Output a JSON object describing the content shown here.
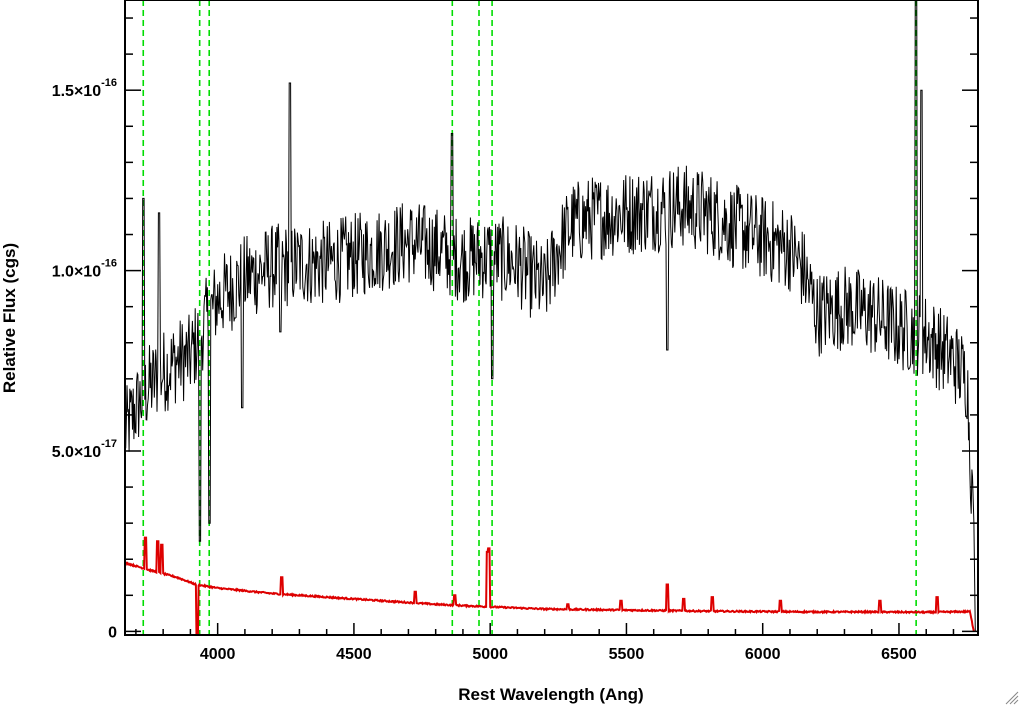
{
  "chart_data": {
    "type": "line",
    "xlabel": "Rest Wavelength (Ang)",
    "ylabel": "Relative Flux (cgs)",
    "xlim": [
      3660,
      6790
    ],
    "ylim": [
      -1e-18,
      1.75e-16
    ],
    "x_ticks": [
      4000,
      4500,
      5000,
      5500,
      6000,
      6500
    ],
    "x_tick_labels": [
      "4000",
      "4500",
      "5000",
      "5500",
      "6000",
      "6500"
    ],
    "y_ticks": [
      {
        "value": 0,
        "mantissa": "0",
        "exponent": ""
      },
      {
        "value": 5e-17,
        "mantissa": "5.0×10",
        "exponent": "-17"
      },
      {
        "value": 1e-16,
        "mantissa": "1.0×10",
        "exponent": "-16"
      },
      {
        "value": 1.5e-16,
        "mantissa": "1.5×10",
        "exponent": "-16"
      }
    ],
    "grid": false,
    "reference_lines": {
      "color": "#00dd00",
      "style": "dashed",
      "x": [
        3727,
        3934,
        3969,
        4861,
        4959,
        5007,
        6563
      ]
    },
    "series": [
      {
        "color": "#000000",
        "continuum": [
          [
            3660,
            5.5e-17
          ],
          [
            3700,
            6.2e-17
          ],
          [
            3750,
            6.8e-17
          ],
          [
            3800,
            7.2e-17
          ],
          [
            3850,
            7.5e-17
          ],
          [
            3900,
            7.6e-17
          ],
          [
            3950,
            8.5e-17
          ],
          [
            4000,
            9.2e-17
          ],
          [
            4100,
            9.8e-17
          ],
          [
            4200,
            1.01e-16
          ],
          [
            4300,
            1.02e-16
          ],
          [
            4400,
            1.02e-16
          ],
          [
            4500,
            1.04e-16
          ],
          [
            4600,
            1.06e-16
          ],
          [
            4700,
            1.08e-16
          ],
          [
            4800,
            1.06e-16
          ],
          [
            4900,
            1.03e-16
          ],
          [
            5000,
            1.04e-16
          ],
          [
            5100,
            1.02e-16
          ],
          [
            5200,
            9.5e-17
          ],
          [
            5250,
            1.06e-16
          ],
          [
            5300,
            1.13e-16
          ],
          [
            5400,
            1.15e-16
          ],
          [
            5500,
            1.16e-16
          ],
          [
            5600,
            1.17e-16
          ],
          [
            5700,
            1.18e-16
          ],
          [
            5800,
            1.16e-16
          ],
          [
            5900,
            1.12e-16
          ],
          [
            6000,
            1.09e-16
          ],
          [
            6100,
            1.06e-16
          ],
          [
            6150,
            1e-16
          ],
          [
            6200,
            8.8e-17
          ],
          [
            6300,
            9e-17
          ],
          [
            6400,
            8.8e-17
          ],
          [
            6500,
            8.4e-17
          ],
          [
            6600,
            8.2e-17
          ],
          [
            6700,
            7.5e-17
          ],
          [
            6750,
            7e-17
          ],
          [
            6790,
            0
          ]
        ],
        "features": [
          {
            "x": 3727,
            "value": 1.2e-16
          },
          {
            "x": 3785,
            "value": 1.16e-16
          },
          {
            "x": 3934,
            "value": 2.5e-17
          },
          {
            "x": 3969,
            "value": 3e-17
          },
          {
            "x": 4090,
            "value": 6.2e-17
          },
          {
            "x": 4230,
            "value": 8.3e-17
          },
          {
            "x": 4265,
            "value": 1.52e-16
          },
          {
            "x": 4861,
            "value": 1.38e-16
          },
          {
            "x": 5007,
            "value": 7e-17
          },
          {
            "x": 5650,
            "value": 7.8e-17
          },
          {
            "x": 6563,
            "value": 1.85e-16
          },
          {
            "x": 6583,
            "value": 1.5e-16
          }
        ],
        "noise_amplitude": 1.2e-17
      },
      {
        "color": "#dd0000",
        "continuum": [
          [
            3660,
            1.9e-17
          ],
          [
            3750,
            1.7e-17
          ],
          [
            3850,
            1.5e-17
          ],
          [
            3920,
            1.3e-17
          ],
          [
            4000,
            1.2e-17
          ],
          [
            4200,
            1.05e-17
          ],
          [
            4400,
            9.5e-18
          ],
          [
            4600,
            8.5e-18
          ],
          [
            4800,
            7.5e-18
          ],
          [
            5000,
            6.8e-18
          ],
          [
            5200,
            6.2e-18
          ],
          [
            5400,
            6e-18
          ],
          [
            5600,
            5.8e-18
          ],
          [
            5800,
            5.6e-18
          ],
          [
            6000,
            5.5e-18
          ],
          [
            6200,
            5.4e-18
          ],
          [
            6400,
            5.4e-18
          ],
          [
            6600,
            5.3e-18
          ],
          [
            6760,
            5.5e-18
          ],
          [
            6775,
            0
          ]
        ],
        "spikes": [
          {
            "x": 3735,
            "value": 2.6e-17
          },
          {
            "x": 3780,
            "value": 2.5e-17
          },
          {
            "x": 3795,
            "value": 2.4e-17
          },
          {
            "x": 3925,
            "value": -2e-18
          },
          {
            "x": 4235,
            "value": 1.5e-17
          },
          {
            "x": 4725,
            "value": 1.1e-17
          },
          {
            "x": 4870,
            "value": 1e-17
          },
          {
            "x": 4990,
            "value": 2.2e-17
          },
          {
            "x": 4995,
            "value": 2.3e-17
          },
          {
            "x": 5285,
            "value": 7.5e-18
          },
          {
            "x": 5480,
            "value": 8.5e-18
          },
          {
            "x": 5650,
            "value": 1.3e-17
          },
          {
            "x": 5710,
            "value": 9e-18
          },
          {
            "x": 5815,
            "value": 9.5e-18
          },
          {
            "x": 6065,
            "value": 8.5e-18
          },
          {
            "x": 6430,
            "value": 8.5e-18
          },
          {
            "x": 6640,
            "value": 9.5e-18
          }
        ]
      }
    ]
  }
}
